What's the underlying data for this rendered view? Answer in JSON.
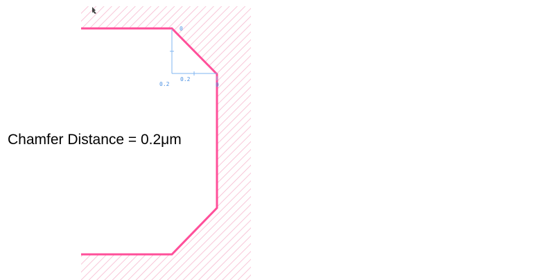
{
  "caption": "Chamfer Distance = 0.2μm",
  "dimensions": {
    "horizontal": "0.2",
    "vertical": "0.2",
    "corner_top": "0",
    "corner_right": "0"
  },
  "colors": {
    "outline": "#ff4f9a",
    "hatch": "#f7b8cf",
    "dimension": "#7fb4f0",
    "dimension_text": "#4a90e2",
    "text": "#000000",
    "background": "#ffffff"
  },
  "icons": {
    "cursor": "pointer-icon"
  }
}
